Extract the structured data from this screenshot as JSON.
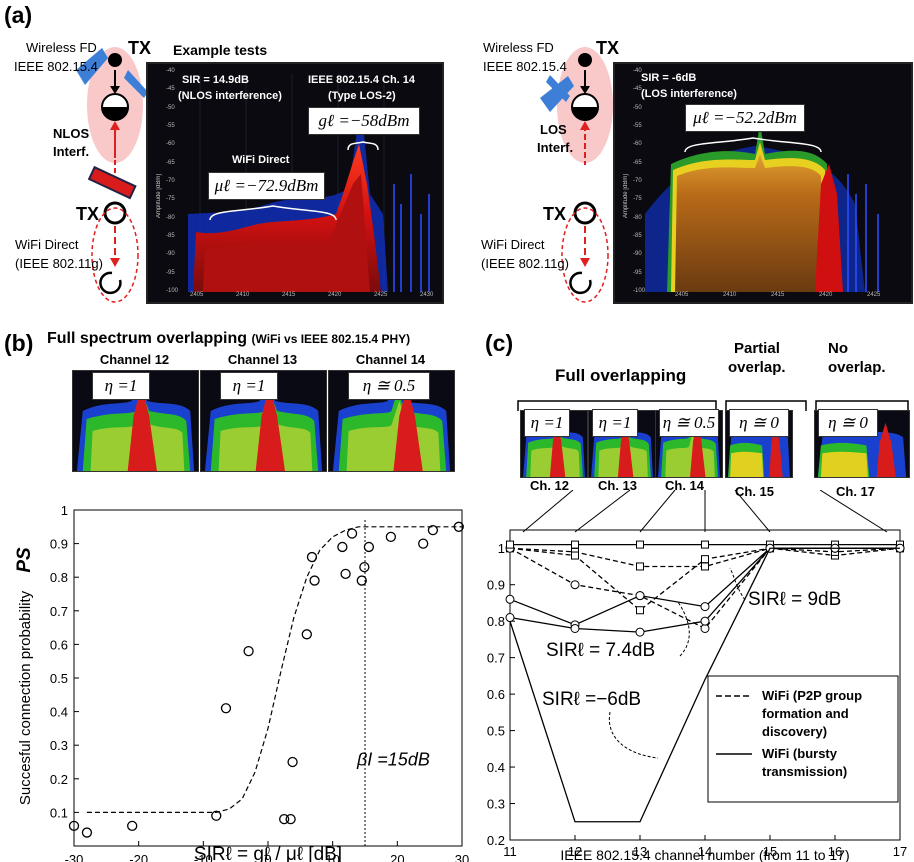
{
  "panels": {
    "a": "(a)",
    "b": "(b)",
    "c": "(c)"
  },
  "panel_a": {
    "left": {
      "device_label_line1": "Wireless FD",
      "device_label_line2": "IEEE 802.15.4",
      "tx_top": "TX",
      "interf_line1": "NLOS",
      "interf_line2": "Interf.",
      "tx_bottom": "TX",
      "wifi_line1": "WiFi Direct",
      "wifi_line2": "(IEEE 802.11g)",
      "example_title": "Example tests",
      "sir_line1": "SIR = 14.9dB",
      "sir_line2": "(NLOS interference)",
      "chan_line1": "IEEE 802.15.4 Ch. 14",
      "chan_line2": "(Type LOS-2)",
      "g_label": "gℓ =−58dBm",
      "wifi_label": "WiFi Direct",
      "mu_label": "μℓ =−72.9dBm",
      "x_ticks": [
        "2405",
        "2410",
        "2415",
        "2420",
        "2425",
        "2430"
      ],
      "y_ticks": [
        "-40",
        "-45",
        "-50",
        "-55",
        "-60",
        "-65",
        "-70",
        "-75",
        "-80",
        "-85",
        "-90",
        "-95",
        "-100"
      ],
      "y_axis_label": "Amplitude [dBm]"
    },
    "right": {
      "device_label_line1": "Wireless FD",
      "device_label_line2": "IEEE 802.15.4",
      "tx_top": "TX",
      "interf_line1": "LOS",
      "interf_line2": "Interf.",
      "tx_bottom": "TX",
      "wifi_line1": "WiFi Direct",
      "wifi_line2": "(IEEE 802.11g)",
      "sir_line1": "SIR = -6dB",
      "sir_line2": "(LOS interference)",
      "mu_label": "μℓ =−52.2dBm",
      "x_ticks": [
        "2405",
        "2410",
        "2415",
        "2420",
        "2425"
      ],
      "y_ticks": [
        "-40",
        "-45",
        "-50",
        "-55",
        "-60",
        "-65",
        "-70",
        "-75",
        "-80",
        "-85",
        "-90",
        "-95",
        "-100"
      ],
      "y_axis_label": "Amplitude [dBm]"
    }
  },
  "panel_b": {
    "title": "Full spectrum overlapping",
    "title_suffix": "(WiFi vs IEEE 802.15.4 PHY)",
    "thumbs": [
      {
        "channel": "Channel 12",
        "eta": "η =1"
      },
      {
        "channel": "Channel 13",
        "eta": "η =1"
      },
      {
        "channel": "Channel 14",
        "eta": "η ≅ 0.5"
      }
    ],
    "threshold_label": "βI =15dB",
    "y_symbol": "PS"
  },
  "panel_c": {
    "group_full": "Full overlapping",
    "group_partial_line1": "Partial",
    "group_partial_line2": "overlap.",
    "group_none_line1": "No",
    "group_none_line2": "overlap.",
    "thumbs": [
      {
        "eta": "η =1",
        "channel": "Ch. 12"
      },
      {
        "eta": "η =1",
        "channel": "Ch. 13"
      },
      {
        "eta": "η ≅ 0.5",
        "channel": "Ch. 14"
      },
      {
        "eta": "η ≅ 0",
        "channel": "Ch. 15"
      },
      {
        "eta": "η ≅ 0",
        "channel": "Ch. 17"
      }
    ],
    "annot_sir9": "SIRℓ = 9dB",
    "annot_sir74": "SIRℓ = 7.4dB",
    "annot_sir_m6": "SIRℓ =−6dB",
    "legend": [
      {
        "style": "dashed",
        "line1": "WiFi (P2P group",
        "line2": "formation and",
        "line3": "discovery)"
      },
      {
        "style": "solid",
        "line1": "WiFi (bursty",
        "line2": "transmission)"
      }
    ]
  },
  "colors": {
    "spectrum_bg": "#0a0a10",
    "device_pink": "#f9c9c9",
    "arrow_red": "#e0201f",
    "antenna_blue": "#3d7fd6",
    "interf_red": "#d81c1c"
  },
  "chart_data": [
    {
      "type": "scatter",
      "panel": "b",
      "xlabel": "SIRℓ = gℓ / μℓ [dB]",
      "ylabel": "Succesful connection probability",
      "xlim": [
        -30,
        30
      ],
      "ylim": [
        0,
        1
      ],
      "x_ticks": [
        -30,
        -20,
        -10,
        0,
        10,
        20,
        30
      ],
      "y_ticks": [
        0.1,
        0.2,
        0.3,
        0.4,
        0.5,
        0.6,
        0.7,
        0.8,
        0.9,
        1
      ],
      "x_tick_labels": [
        "-30",
        "-20",
        "-10",
        "0",
        "10",
        "20",
        "30"
      ],
      "y_tick_labels": [
        "0.1",
        "0.2",
        "0.3",
        "0.4",
        "0.5",
        "0.6",
        "0.7",
        "0.8",
        "0.9",
        "1"
      ],
      "points": [
        {
          "x": -30,
          "y": 0.06
        },
        {
          "x": -28,
          "y": 0.04
        },
        {
          "x": -21,
          "y": 0.06
        },
        {
          "x": -8,
          "y": 0.09
        },
        {
          "x": -6.5,
          "y": 0.41
        },
        {
          "x": -3,
          "y": 0.58
        },
        {
          "x": 2.5,
          "y": 0.08
        },
        {
          "x": 3.5,
          "y": 0.08
        },
        {
          "x": 3.8,
          "y": 0.25
        },
        {
          "x": 6,
          "y": 0.63
        },
        {
          "x": 6.8,
          "y": 0.86
        },
        {
          "x": 7.2,
          "y": 0.79
        },
        {
          "x": 11.5,
          "y": 0.89
        },
        {
          "x": 12,
          "y": 0.81
        },
        {
          "x": 13,
          "y": 0.93
        },
        {
          "x": 14.5,
          "y": 0.79
        },
        {
          "x": 14.9,
          "y": 0.83
        },
        {
          "x": 15.6,
          "y": 0.89
        },
        {
          "x": 19,
          "y": 0.92
        },
        {
          "x": 24,
          "y": 0.9
        },
        {
          "x": 25.5,
          "y": 0.94
        },
        {
          "x": 29.5,
          "y": 0.95
        }
      ],
      "fit_curve": {
        "x": [
          -28,
          -10,
          -8,
          -6,
          -4,
          -2,
          0,
          2,
          4,
          6,
          8,
          10,
          12,
          14,
          16,
          20,
          30
        ],
        "y": [
          0.1,
          0.1,
          0.1,
          0.11,
          0.14,
          0.22,
          0.35,
          0.52,
          0.68,
          0.8,
          0.88,
          0.92,
          0.94,
          0.95,
          0.95,
          0.95,
          0.95
        ]
      },
      "threshold_x": 15
    },
    {
      "type": "line",
      "panel": "c",
      "xlabel": "IEEE 802.15.4 channel number  (from 11 to 17)",
      "xlim": [
        11,
        17
      ],
      "ylim": [
        0.2,
        1.05
      ],
      "x_ticks": [
        11,
        12,
        13,
        14,
        15,
        16,
        17
      ],
      "y_ticks": [
        0.2,
        0.3,
        0.4,
        0.5,
        0.6,
        0.7,
        0.8,
        0.9,
        1
      ],
      "x_tick_labels": [
        "11",
        "12",
        "13",
        "14",
        "15",
        "16",
        "17"
      ],
      "y_tick_labels": [
        "0.2",
        "0.3",
        "0.4",
        "0.5",
        "0.6",
        "0.7",
        "0.8",
        "0.9",
        "1"
      ],
      "series": [
        {
          "style": "dashed",
          "marker": "square",
          "values": [
            1.0,
            0.99,
            0.95,
            0.95,
            1.0,
            0.98,
            1.0
          ]
        },
        {
          "style": "dashed",
          "marker": "square",
          "values": [
            1.0,
            0.98,
            0.83,
            0.97,
            1.0,
            0.99,
            1.0
          ]
        },
        {
          "style": "dashed",
          "marker": "circle",
          "values": [
            1.0,
            0.9,
            0.87,
            0.78,
            1.0,
            1.0,
            1.0
          ]
        },
        {
          "style": "solid",
          "marker": "square",
          "values": [
            1.01,
            1.01,
            1.01,
            1.01,
            1.01,
            1.01,
            1.01
          ]
        },
        {
          "style": "solid",
          "marker": "circle",
          "values": [
            0.86,
            0.79,
            0.87,
            0.84,
            1.0,
            1.0,
            1.0
          ]
        },
        {
          "style": "solid",
          "marker": "circle",
          "values": [
            0.81,
            0.78,
            0.77,
            0.8,
            1.0,
            1.0,
            1.0
          ]
        },
        {
          "style": "solid",
          "marker": "none",
          "values": [
            0.8,
            0.25,
            0.25,
            0.64,
            1.0,
            1.0,
            1.0
          ]
        }
      ]
    }
  ]
}
